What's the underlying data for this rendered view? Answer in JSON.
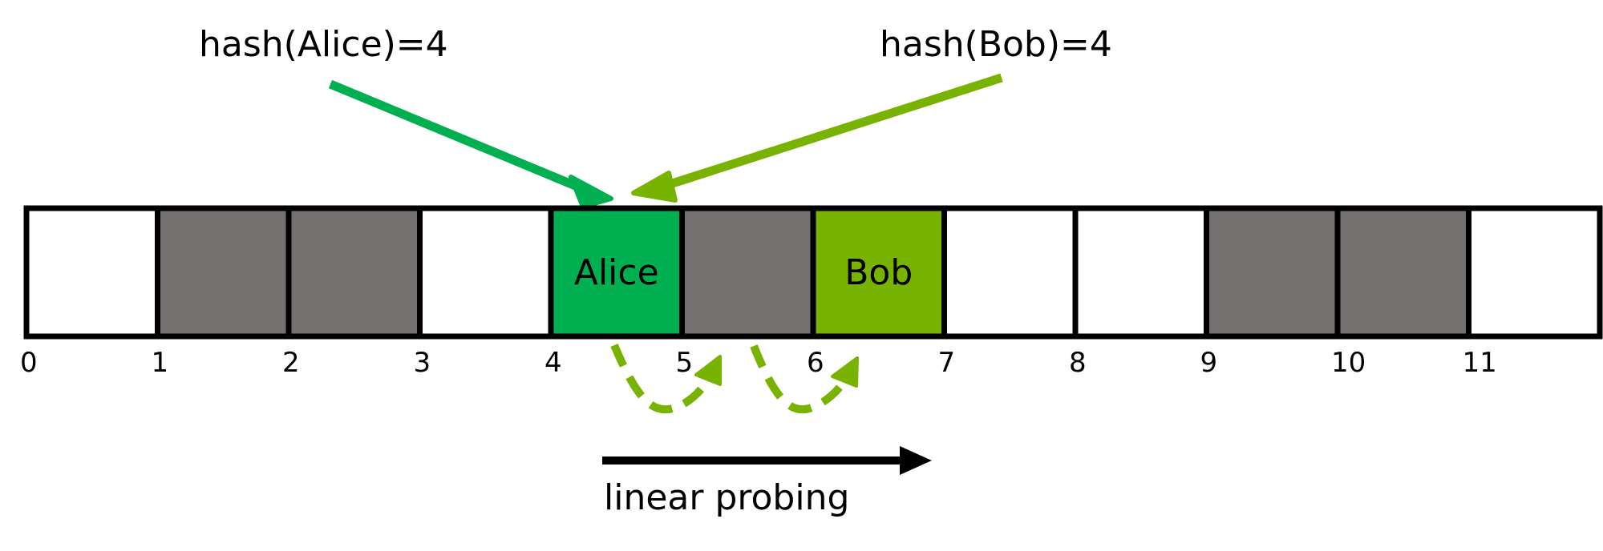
{
  "annotations": {
    "alice_hash": "hash(Alice)=4",
    "bob_hash": "hash(Bob)=4",
    "probe_caption": "linear probing"
  },
  "table": {
    "slots": [
      {
        "state": "empty",
        "key": ""
      },
      {
        "state": "occupied",
        "key": ""
      },
      {
        "state": "occupied",
        "key": ""
      },
      {
        "state": "empty",
        "key": ""
      },
      {
        "state": "alice",
        "key": "Alice"
      },
      {
        "state": "occupied",
        "key": ""
      },
      {
        "state": "bob",
        "key": "Bob"
      },
      {
        "state": "empty",
        "key": ""
      },
      {
        "state": "empty",
        "key": ""
      },
      {
        "state": "occupied",
        "key": ""
      },
      {
        "state": "occupied",
        "key": ""
      },
      {
        "state": "empty",
        "key": ""
      }
    ],
    "indices": [
      "0",
      "1",
      "2",
      "3",
      "4",
      "5",
      "6",
      "7",
      "8",
      "9",
      "10",
      "11"
    ]
  },
  "colors": {
    "empty": "#ffffff",
    "occupied": "#767171",
    "alice": "#00b050",
    "bob": "#77b300",
    "border": "#000000",
    "alice_arrow": "#00b050",
    "bob_arrow": "#77b300",
    "probe_arrow": "#77b300",
    "direction_arrow": "#000000"
  }
}
